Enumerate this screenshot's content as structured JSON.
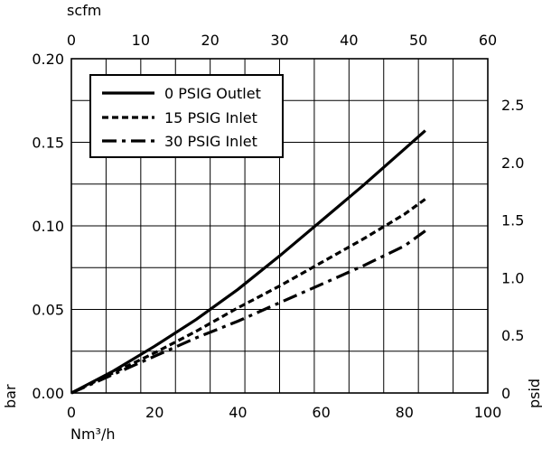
{
  "chart_data": {
    "type": "line",
    "title": "",
    "grid": true,
    "legend_placement": "top-left",
    "axes": {
      "x_bottom": {
        "label": "Nm³/h",
        "range": [
          0,
          100
        ],
        "ticks": [
          0,
          20,
          40,
          60,
          80,
          100
        ]
      },
      "x_top": {
        "label": "scfm",
        "range": [
          0,
          60
        ],
        "ticks": [
          0,
          10,
          20,
          30,
          40,
          50,
          60
        ]
      },
      "y_left": {
        "label": "bar",
        "range": [
          0,
          0.2
        ],
        "ticks": [
          "0.00",
          "0.05",
          "0.10",
          "0.15",
          "0.20"
        ]
      },
      "y_right": {
        "label": "psid",
        "range": [
          0,
          2.9
        ],
        "ticks": [
          "0",
          "0.5",
          "1.0",
          "1.5",
          "2.0",
          "2.5"
        ]
      }
    },
    "series": [
      {
        "name": "0 PSIG Outlet",
        "style": "solid",
        "x": [
          0,
          10,
          20,
          30,
          40,
          50,
          60,
          70,
          80,
          85
        ],
        "y": [
          0,
          0.013,
          0.028,
          0.044,
          0.062,
          0.082,
          0.103,
          0.124,
          0.146,
          0.157
        ]
      },
      {
        "name": "15 PSIG Inlet",
        "style": "dotted",
        "x": [
          0,
          10,
          20,
          30,
          40,
          50,
          60,
          70,
          80,
          85
        ],
        "y": [
          0,
          0.012,
          0.024,
          0.037,
          0.051,
          0.064,
          0.078,
          0.092,
          0.107,
          0.116
        ]
      },
      {
        "name": "30 PSIG Inlet",
        "style": "dashdot",
        "x": [
          0,
          10,
          20,
          30,
          40,
          50,
          60,
          70,
          80,
          85
        ],
        "y": [
          0,
          0.011,
          0.022,
          0.033,
          0.043,
          0.054,
          0.065,
          0.076,
          0.088,
          0.097
        ]
      }
    ]
  },
  "colors": {
    "ink": "#000000",
    "background": "#ffffff"
  }
}
